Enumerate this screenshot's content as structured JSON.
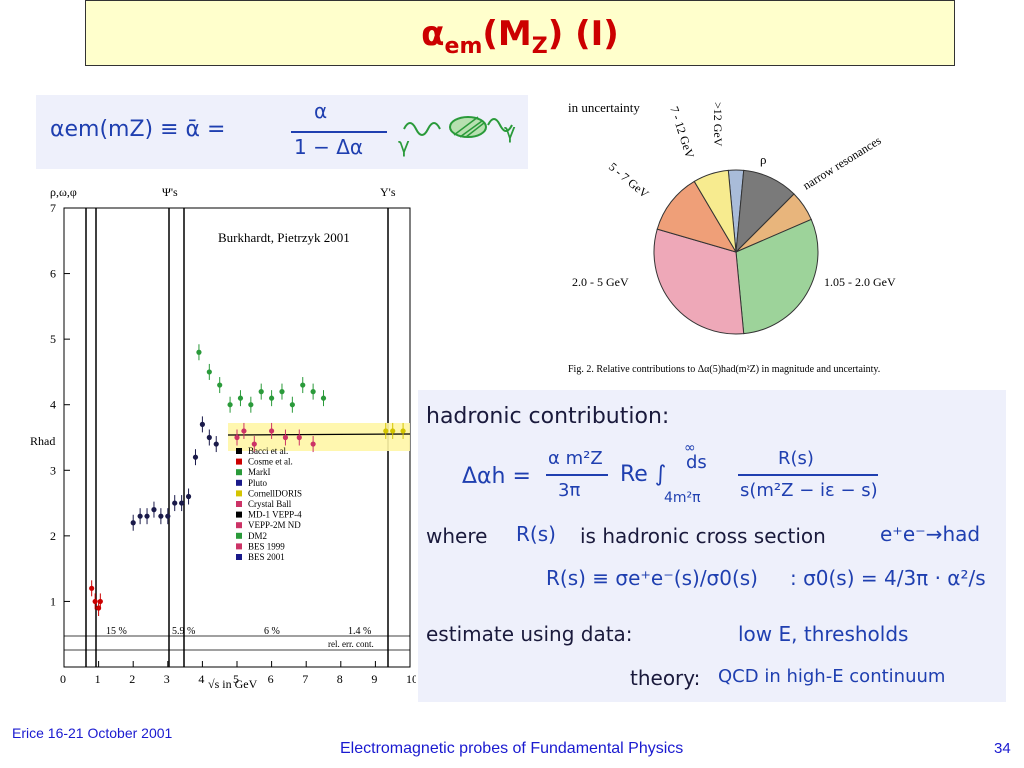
{
  "slide": {
    "title_base": "α",
    "title_sub1": "em",
    "title_mid": "(M",
    "title_sub2": "Z",
    "title_end": ")  (I)",
    "footer_left": "Erice 16-21 October 2001",
    "footer_center": "Electromagnetic probes of Fundamental Physics",
    "footer_right": "34"
  },
  "formula": {
    "lhs": "αem(mZ) ≡ ᾱ =",
    "numerator": "α",
    "denominator": "1 − Δα",
    "gamma_left": "γ",
    "gamma_right": "γ"
  },
  "pie": {
    "corner_label": "in uncertainty",
    "caption": "Fig. 2. Relative contributions to Δα(5)had(m²Z) in magnitude and uncertainty.",
    "slice_labels": [
      ">12 GeV",
      "ρ",
      "narrow resonances",
      "1.05 - 2.0 GeV",
      "2.0 - 5 GeV",
      "5 - 7 GeV",
      "7 - 12 GeV"
    ]
  },
  "hadronic": {
    "heading": "hadronic contribution:",
    "delta_eq": "Δαh =",
    "frac_num": "α m²Z",
    "frac_den": "3π",
    "re": "Re ∫",
    "limit_low": "4m²π",
    "limit_high": "∞",
    "ds": "ds",
    "rs_num": "R(s)",
    "rs_den": "s(m²Z − iε − s)",
    "where": "where",
    "rs": "R(s)",
    "is_text": "is hadronic cross section",
    "reaction": "e⁺e⁻→had",
    "rs_def": "R(s) ≡ σe⁺e⁻(s)/σ0(s)",
    "sigma0": ":  σ0(s) = 4/3π · α²/s",
    "estimate": "estimate using data:",
    "lowE": "low E, thresholds",
    "theory": "theory:",
    "qcd": "QCD in high-E continuum"
  },
  "chart_data": [
    {
      "type": "scatter",
      "title": "Burkhardt, Pietrzyk 2001",
      "xlabel": "√s in GeV",
      "ylabel": "Rhad",
      "xlim": [
        0,
        10
      ],
      "ylim": [
        0,
        7
      ],
      "xticks": [
        "0",
        "1",
        "2",
        "3",
        "4",
        "5",
        "6",
        "7",
        "8",
        "9",
        "10"
      ],
      "yticks": [
        "1",
        "2",
        "3",
        "4",
        "5",
        "6",
        "7"
      ],
      "top_labels": [
        "ρ,ω,φ",
        "Ψ's",
        "Υ's"
      ],
      "legend_position": "center-right",
      "legend": [
        "Bacci et al.",
        "Cosme et al.",
        "MarkI",
        "Pluto",
        "CornellDORIS",
        "Crystal Ball",
        "MD-1 VEPP-4",
        "VEPP-2M ND",
        "DM2",
        "BES 1999",
        "BES 2001"
      ],
      "error_bands": [
        "15 %",
        "5.9 %",
        "6 %",
        "1.4 %"
      ],
      "error_label": "rel. err. cont.",
      "series": [
        {
          "name": "MarkI",
          "x": [
            3.9,
            4.2,
            4.5,
            4.8,
            5.1,
            5.4,
            5.7,
            6.0,
            6.3,
            6.6,
            6.9,
            7.2,
            7.5
          ],
          "y": [
            4.8,
            4.5,
            4.3,
            4.0,
            4.1,
            4.0,
            4.2,
            4.1,
            4.2,
            4.0,
            4.3,
            4.2,
            4.1
          ]
        },
        {
          "name": "Crystal Ball",
          "x": [
            5.0,
            5.2,
            5.5,
            6.0,
            6.4,
            6.8,
            7.2
          ],
          "y": [
            3.5,
            3.6,
            3.4,
            3.6,
            3.5,
            3.5,
            3.4
          ]
        },
        {
          "name": "BES 2001",
          "x": [
            2.0,
            2.2,
            2.4,
            2.6,
            2.8,
            3.0,
            3.2,
            3.4,
            3.6,
            3.8,
            4.0,
            4.2,
            4.4
          ],
          "y": [
            2.2,
            2.3,
            2.3,
            2.4,
            2.3,
            2.3,
            2.5,
            2.5,
            2.6,
            3.2,
            3.7,
            3.5,
            3.4
          ]
        },
        {
          "name": "Cosme et al.",
          "x": [
            0.8,
            0.9,
            1.0,
            1.05
          ],
          "y": [
            1.2,
            1.0,
            0.9,
            1.0
          ]
        },
        {
          "name": "CornellDORIS",
          "x": [
            9.3,
            9.5,
            9.8
          ],
          "y": [
            3.6,
            3.6,
            3.6
          ]
        }
      ]
    },
    {
      "type": "pie",
      "labels": [
        ">12 GeV",
        "ρ",
        "narrow resonances",
        "1.05 - 2.0 GeV",
        "2.0 - 5 GeV",
        "5 - 7 GeV",
        "7 - 12 GeV"
      ],
      "values": [
        3,
        11,
        6,
        30,
        31,
        12,
        7
      ],
      "colors": [
        "#a9bcd9",
        "#7a7a7a",
        "#e8b57c",
        "#9dd39a",
        "#eea8b8",
        "#ef9f78",
        "#f7eb8f"
      ]
    }
  ]
}
